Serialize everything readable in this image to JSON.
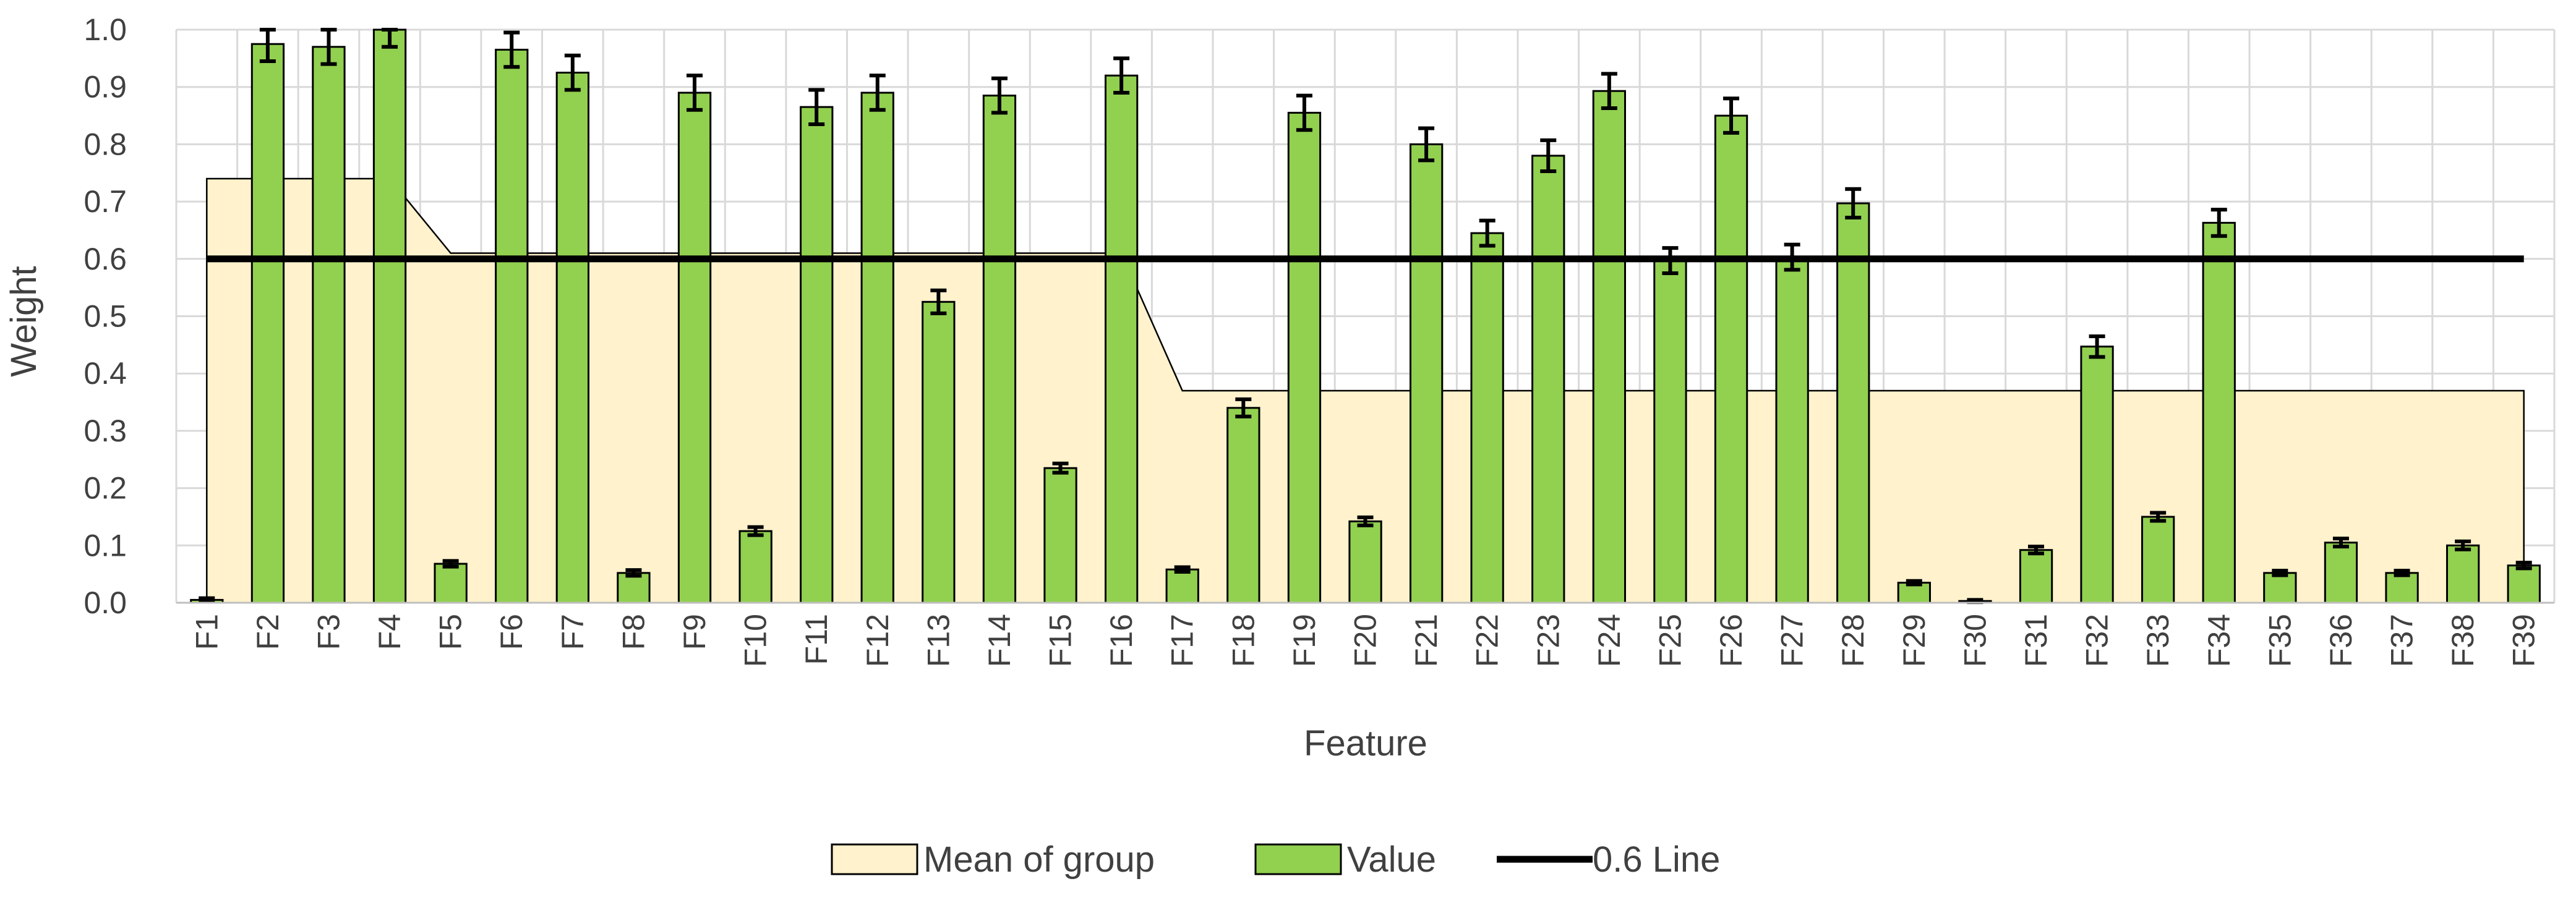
{
  "chart_data": {
    "type": "bar",
    "xlabel": "Feature",
    "ylabel": "Weight",
    "ylim": [
      0,
      1.0
    ],
    "yticks": [
      "0.0",
      "0.1",
      "0.2",
      "0.3",
      "0.4",
      "0.5",
      "0.6",
      "0.7",
      "0.8",
      "0.9",
      "1.0"
    ],
    "grid": true,
    "legend_position": "bottom",
    "categories": [
      "F1",
      "F2",
      "F3",
      "F4",
      "F5",
      "F6",
      "F7",
      "F8",
      "F9",
      "F10",
      "F11",
      "F12",
      "F13",
      "F14",
      "F15",
      "F16",
      "F17",
      "F18",
      "F19",
      "F20",
      "F21",
      "F22",
      "F23",
      "F24",
      "F25",
      "F26",
      "F27",
      "F28",
      "F29",
      "F30",
      "F31",
      "F32",
      "F33",
      "F34",
      "F35",
      "F36",
      "F37",
      "F38",
      "F39"
    ],
    "series": [
      {
        "name": "Value",
        "kind": "bar",
        "color": "#92d050",
        "values": [
          0.005,
          0.975,
          0.97,
          1.0,
          0.068,
          0.965,
          0.925,
          0.052,
          0.89,
          0.125,
          0.865,
          0.89,
          0.525,
          0.885,
          0.235,
          0.92,
          0.058,
          0.34,
          0.855,
          0.142,
          0.8,
          0.645,
          0.78,
          0.893,
          0.597,
          0.85,
          0.603,
          0.697,
          0.035,
          0.003,
          0.092,
          0.447,
          0.15,
          0.663,
          0.052,
          0.105,
          0.052,
          0.1,
          0.065
        ],
        "errors": [
          0.003,
          0.03,
          0.03,
          0.03,
          0.005,
          0.03,
          0.03,
          0.005,
          0.03,
          0.007,
          0.03,
          0.03,
          0.02,
          0.03,
          0.008,
          0.03,
          0.004,
          0.015,
          0.03,
          0.007,
          0.028,
          0.022,
          0.027,
          0.03,
          0.022,
          0.03,
          0.022,
          0.025,
          0.003,
          0.002,
          0.006,
          0.018,
          0.007,
          0.023,
          0.004,
          0.007,
          0.004,
          0.007,
          0.005
        ]
      },
      {
        "name": "Mean of group",
        "kind": "area",
        "color": "#fff2cc",
        "values": [
          0.74,
          0.74,
          0.74,
          0.74,
          0.61,
          0.61,
          0.61,
          0.61,
          0.61,
          0.61,
          0.61,
          0.61,
          0.61,
          0.61,
          0.61,
          0.61,
          0.37,
          0.37,
          0.37,
          0.37,
          0.37,
          0.37,
          0.37,
          0.37,
          0.37,
          0.37,
          0.37,
          0.37,
          0.37,
          0.37,
          0.37,
          0.37,
          0.37,
          0.37,
          0.37,
          0.37,
          0.37,
          0.37,
          0.37
        ]
      },
      {
        "name": "0.6 Line",
        "kind": "line",
        "color": "#000000",
        "values": [
          0.6,
          0.6,
          0.6,
          0.6,
          0.6,
          0.6,
          0.6,
          0.6,
          0.6,
          0.6,
          0.6,
          0.6,
          0.6,
          0.6,
          0.6,
          0.6,
          0.6,
          0.6,
          0.6,
          0.6,
          0.6,
          0.6,
          0.6,
          0.6,
          0.6,
          0.6,
          0.6,
          0.6,
          0.6,
          0.6,
          0.6,
          0.6,
          0.6,
          0.6,
          0.6,
          0.6,
          0.6,
          0.6,
          0.6
        ]
      }
    ],
    "legend": [
      "Mean of group",
      "Value",
      "0.6 Line"
    ]
  }
}
